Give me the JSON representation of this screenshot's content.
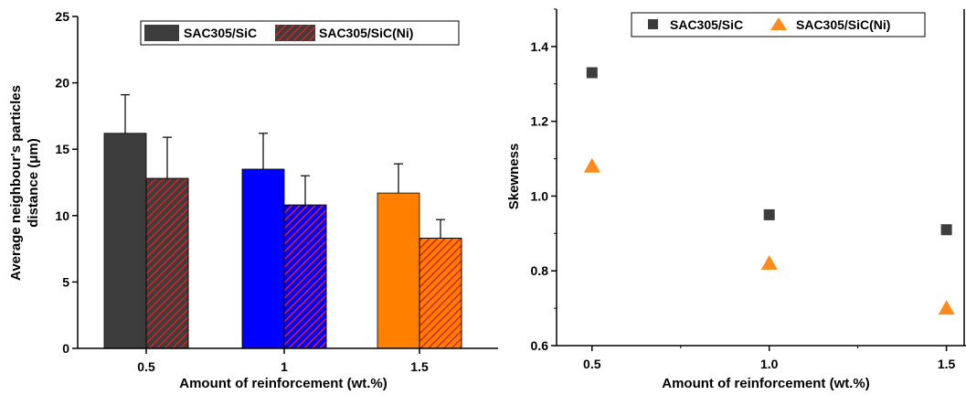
{
  "chart_data": [
    {
      "type": "bar",
      "categories": [
        "0.5",
        "1",
        "1.5"
      ],
      "xlabel": "Amount of reinforcement (wt.%)",
      "ylabel_lines": [
        "Average neighbour's particles",
        "distance (μm)"
      ],
      "ylim": [
        0,
        25
      ],
      "yticks": [
        "0",
        "5",
        "10",
        "15",
        "20",
        "25"
      ],
      "legend_position": "top-center",
      "series": [
        {
          "name": "SAC305/SiC",
          "values": [
            16.2,
            13.5,
            11.7
          ],
          "errors": [
            2.9,
            2.7,
            2.2
          ],
          "colors": [
            "#3d3d3d",
            "#0000ff",
            "#ff8000"
          ],
          "fill": "solid"
        },
        {
          "name": "SAC305/SiC(Ni)",
          "values": [
            12.8,
            10.8,
            8.3
          ],
          "errors": [
            3.1,
            2.2,
            1.4
          ],
          "colors": [
            "#3d3d3d",
            "#0000ff",
            "#ff8000"
          ],
          "hatch_color": "#e02020",
          "fill": "hatched"
        }
      ]
    },
    {
      "type": "scatter",
      "xlabel": "Amount of reinforcement (wt.%)",
      "ylabel": "Skewness",
      "xlim": [
        0.4,
        1.55
      ],
      "ylim": [
        0.6,
        1.5
      ],
      "xticks": [
        "0.5",
        "1.0",
        "1.5"
      ],
      "yticks": [
        "0.6",
        "0.8",
        "1.0",
        "1.2",
        "1.4"
      ],
      "legend_position": "top-center",
      "series": [
        {
          "name": "SAC305/SiC",
          "marker": "square",
          "color": "#3d3d3d",
          "x": [
            0.5,
            1.0,
            1.5
          ],
          "y": [
            1.33,
            0.95,
            0.91
          ]
        },
        {
          "name": "SAC305/SiC(Ni)",
          "marker": "triangle",
          "color": "#ff8c1a",
          "x": [
            0.5,
            1.0,
            1.5
          ],
          "y": [
            1.08,
            0.82,
            0.7
          ]
        }
      ]
    }
  ]
}
